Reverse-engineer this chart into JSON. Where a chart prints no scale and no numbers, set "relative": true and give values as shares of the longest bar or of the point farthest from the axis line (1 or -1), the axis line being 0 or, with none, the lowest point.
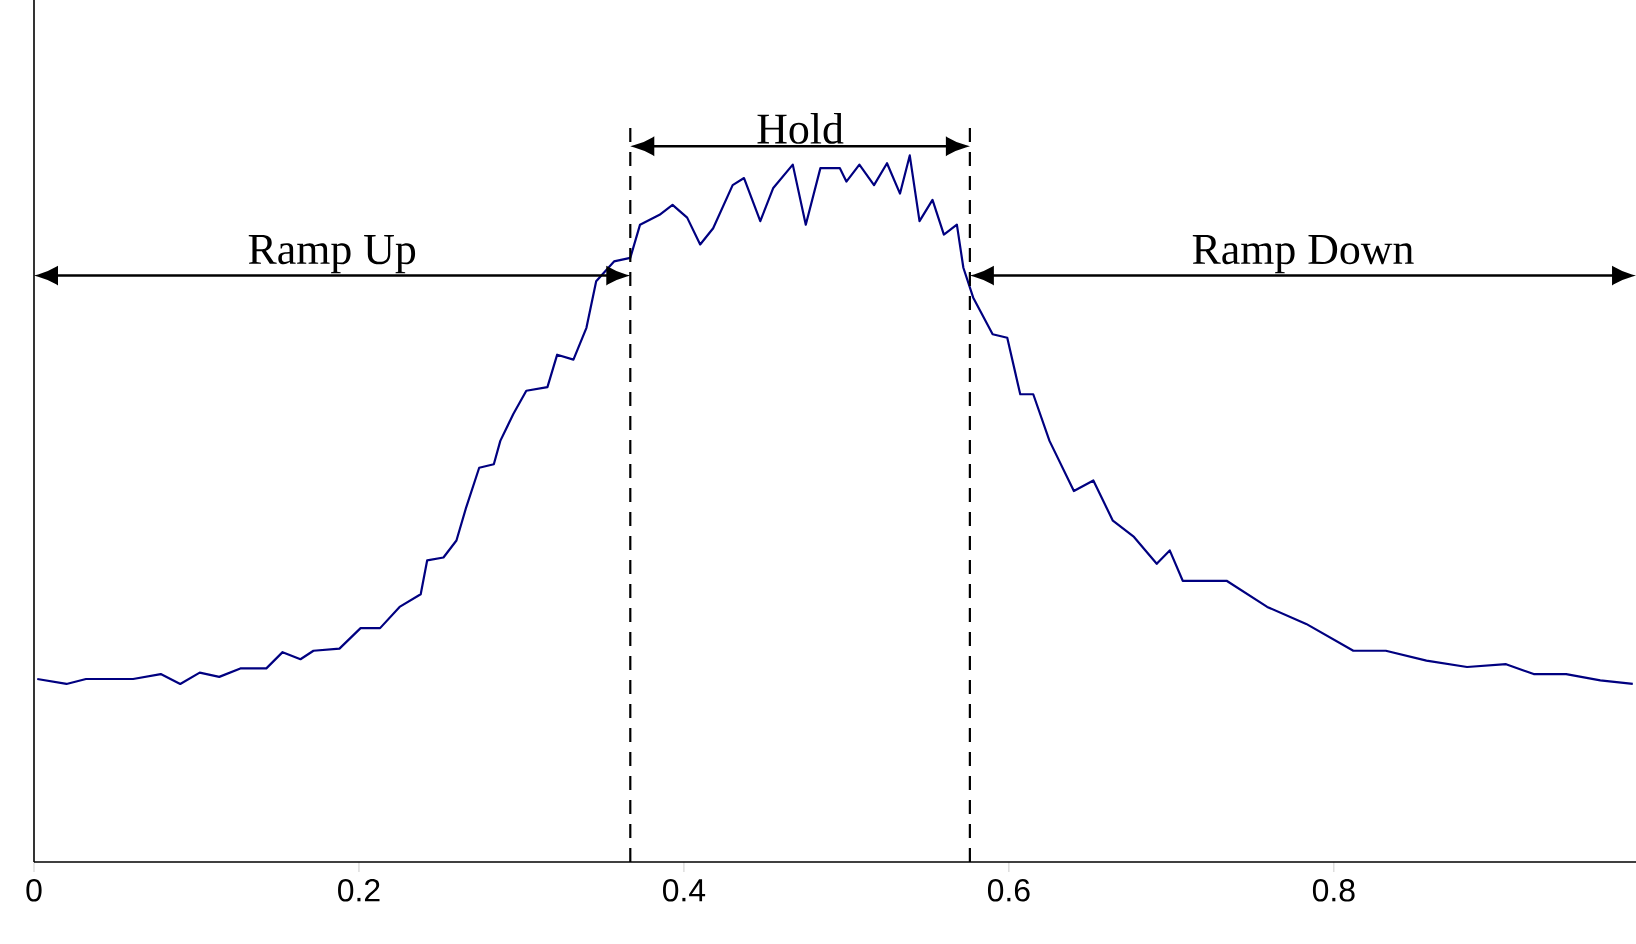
{
  "chart_data": {
    "type": "line",
    "relative": true,
    "xlim": [
      0,
      0.986
    ],
    "xticks": [
      0,
      0.2,
      0.4,
      0.6,
      0.8
    ],
    "color": "#000080",
    "line_style": "solid",
    "marker": "none",
    "x": [
      0.002,
      0.02,
      0.032,
      0.061,
      0.078,
      0.09,
      0.102,
      0.114,
      0.127,
      0.143,
      0.153,
      0.164,
      0.172,
      0.188,
      0.201,
      0.213,
      0.225,
      0.238,
      0.242,
      0.252,
      0.26,
      0.266,
      0.274,
      0.283,
      0.287,
      0.295,
      0.303,
      0.316,
      0.322,
      0.332,
      0.34,
      0.346,
      0.357,
      0.367,
      0.373,
      0.385,
      0.393,
      0.402,
      0.41,
      0.418,
      0.43,
      0.437,
      0.447,
      0.455,
      0.467,
      0.475,
      0.484,
      0.496,
      0.5,
      0.508,
      0.517,
      0.525,
      0.533,
      0.539,
      0.545,
      0.553,
      0.56,
      0.568,
      0.572,
      0.578,
      0.59,
      0.599,
      0.607,
      0.615,
      0.625,
      0.64,
      0.652,
      0.664,
      0.677,
      0.691,
      0.699,
      0.707,
      0.734,
      0.759,
      0.783,
      0.812,
      0.832,
      0.857,
      0.882,
      0.906,
      0.923,
      0.943,
      0.964,
      0.984
    ],
    "values": [
      0.259,
      0.252,
      0.259,
      0.259,
      0.266,
      0.252,
      0.268,
      0.262,
      0.274,
      0.274,
      0.297,
      0.287,
      0.299,
      0.302,
      0.331,
      0.331,
      0.361,
      0.379,
      0.427,
      0.431,
      0.455,
      0.502,
      0.558,
      0.563,
      0.596,
      0.634,
      0.667,
      0.672,
      0.718,
      0.711,
      0.756,
      0.822,
      0.85,
      0.855,
      0.902,
      0.916,
      0.93,
      0.912,
      0.874,
      0.897,
      0.958,
      0.968,
      0.907,
      0.954,
      0.987,
      0.902,
      0.982,
      0.982,
      0.963,
      0.987,
      0.958,
      0.989,
      0.946,
      1,
      0.907,
      0.937,
      0.888,
      0.902,
      0.841,
      0.799,
      0.747,
      0.742,
      0.662,
      0.662,
      0.596,
      0.525,
      0.54,
      0.483,
      0.46,
      0.422,
      0.441,
      0.398,
      0.398,
      0.361,
      0.337,
      0.299,
      0.299,
      0.285,
      0.276,
      0.28,
      0.266,
      0.266,
      0.257,
      0.252
    ],
    "ref_lines": [
      {
        "axis": "x",
        "value": 0.367,
        "line_style": "dashed"
      },
      {
        "axis": "x",
        "value": 0.576,
        "line_style": "dashed"
      }
    ],
    "annotations": [
      "Ramp Up",
      "Hold",
      "Ramp Down"
    ]
  }
}
